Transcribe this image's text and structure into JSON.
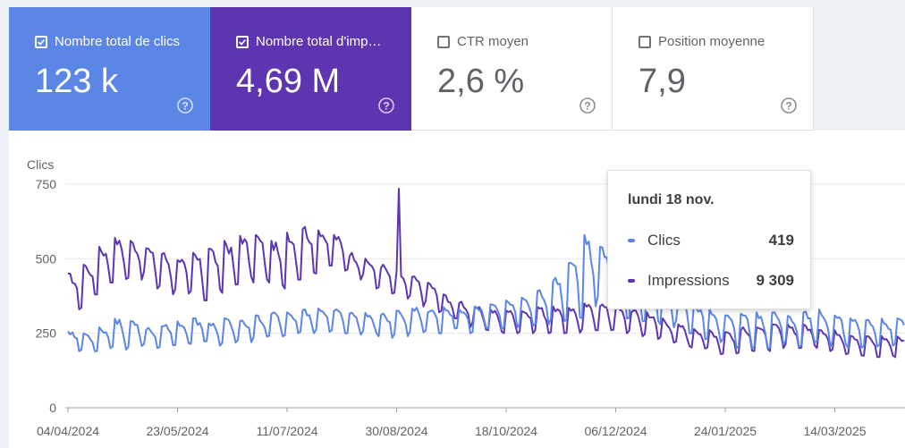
{
  "colors": {
    "clics": "#5b86e5",
    "impressions": "#5e35b1",
    "grid": "#e8eaed",
    "axis": "#9aa0a6"
  },
  "metrics": [
    {
      "label": "Nombre total de clics",
      "value": "123 k",
      "checked": true,
      "icon": "help-icon"
    },
    {
      "label": "Nombre total d'impressions",
      "value": "4,69 M",
      "checked": true,
      "icon": "help-icon"
    },
    {
      "label": "CTR moyen",
      "value": "2,6 %",
      "checked": false,
      "icon": "help-icon"
    },
    {
      "label": "Position moyenne",
      "value": "7,9",
      "checked": false,
      "icon": "help-icon"
    }
  ],
  "tooltip": {
    "date": "lundi 18 nov.",
    "rows": [
      {
        "name": "Clics",
        "value": "419"
      },
      {
        "name": "Impressions",
        "value": "9 309"
      }
    ]
  },
  "chart_data": {
    "type": "line",
    "ylabel": "Clics",
    "ylim": [
      0,
      750
    ],
    "yticks": [
      0,
      250,
      500,
      750
    ],
    "xticks": [
      "04/04/2024",
      "23/05/2024",
      "11/07/2024",
      "30/08/2024",
      "18/10/2024",
      "06/12/2024",
      "24/01/2025",
      "14/03/2025"
    ],
    "x_start": "2024-04-04",
    "grid": true,
    "series": [
      {
        "name": "Clics",
        "key": "clics",
        "weekly_low": [
          190,
          190,
          200,
          195,
          200,
          200,
          210,
          210,
          215,
          205,
          210,
          220,
          230,
          240,
          250,
          250,
          255,
          250,
          245,
          240,
          235,
          240,
          250,
          250,
          255,
          250,
          260,
          265,
          270,
          275,
          280,
          290,
          300,
          340,
          340,
          300,
          290,
          280,
          270,
          250,
          230,
          210,
          200,
          200,
          200,
          200,
          205,
          205,
          205,
          200,
          200,
          200
        ],
        "weekly_high": [
          260,
          250,
          270,
          300,
          290,
          270,
          280,
          290,
          300,
          290,
          300,
          300,
          310,
          320,
          320,
          330,
          335,
          330,
          320,
          320,
          320,
          330,
          340,
          330,
          340,
          330,
          340,
          350,
          360,
          370,
          400,
          440,
          500,
          580,
          540,
          480,
          450,
          420,
          400,
          370,
          350,
          330,
          310,
          320,
          320,
          320,
          320,
          330,
          330,
          310,
          300,
          300
        ]
      },
      {
        "name": "Impressions",
        "key": "impressions",
        "weekly_low": [
          330,
          380,
          420,
          430,
          430,
          400,
          380,
          370,
          360,
          380,
          400,
          420,
          420,
          400,
          430,
          450,
          470,
          460,
          430,
          400,
          380,
          360,
          340,
          320,
          290,
          270,
          260,
          250,
          250,
          250,
          250,
          250,
          250,
          260,
          260,
          250,
          240,
          230,
          210,
          200,
          190,
          180,
          180,
          190,
          190,
          200,
          200,
          200,
          190,
          180,
          170,
          170
        ],
        "weekly_high": [
          450,
          480,
          540,
          570,
          560,
          540,
          520,
          510,
          520,
          540,
          560,
          580,
          580,
          560,
          590,
          610,
          600,
          580,
          520,
          500,
          480,
          460,
          440,
          420,
          380,
          360,
          340,
          330,
          330,
          330,
          340,
          340,
          340,
          350,
          350,
          340,
          330,
          320,
          300,
          280,
          270,
          260,
          260,
          270,
          280,
          280,
          280,
          280,
          270,
          260,
          250,
          240
        ],
        "peak": {
          "date": "2024-08-30",
          "value": 735
        }
      }
    ],
    "highlight": {
      "date": "2024-11-18",
      "clics": 419,
      "impressions": 9309
    }
  }
}
